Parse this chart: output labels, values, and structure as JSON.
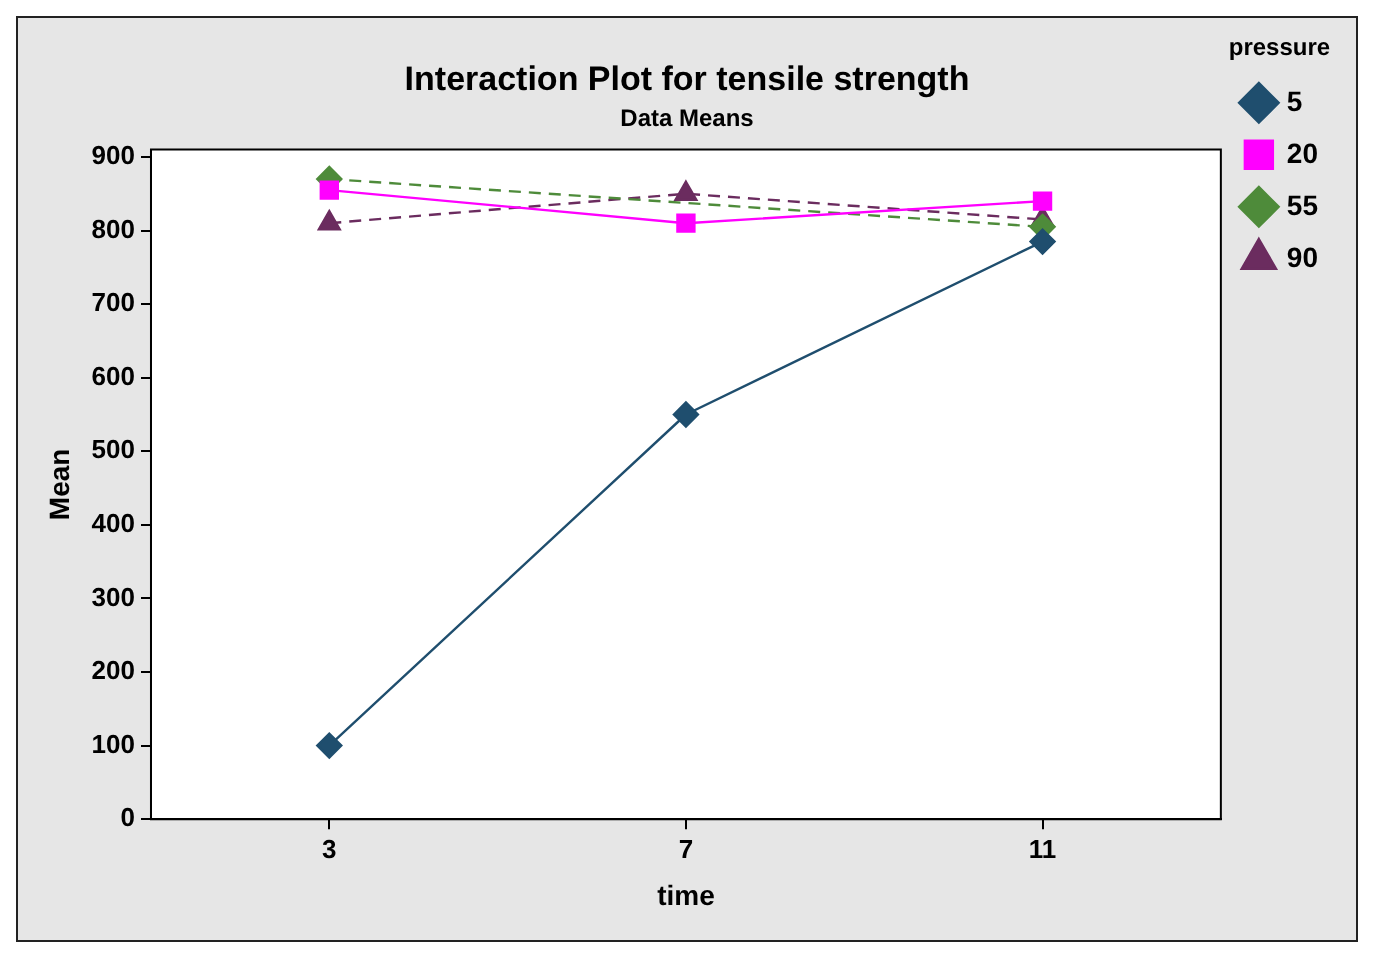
{
  "chart_data": {
    "type": "line",
    "title": "Interaction Plot for tensile strength",
    "subtitle": "Data Means",
    "xlabel": "time",
    "ylabel": "Mean",
    "legend_title": "pressure",
    "legend": "right",
    "grid": false,
    "x": [
      3,
      7,
      11
    ],
    "xlim": [
      1,
      13
    ],
    "xticks": [
      3,
      7,
      11
    ],
    "ylim": [
      0,
      910
    ],
    "yticks": [
      0,
      100,
      200,
      300,
      400,
      500,
      600,
      700,
      800,
      900
    ],
    "series": [
      {
        "name": "5",
        "color": "#1f4e6e",
        "values": [
          100,
          550,
          785
        ],
        "marker": "diamond",
        "line_style": "solid"
      },
      {
        "name": "20",
        "color": "#ff00ff",
        "values": [
          855,
          810,
          840
        ],
        "marker": "square",
        "line_style": "solid"
      },
      {
        "name": "55",
        "color": "#4e8b3a",
        "values": [
          870,
          null,
          805
        ],
        "marker": "diamond",
        "line_style": "dashed"
      },
      {
        "name": "90",
        "color": "#6b2c5f",
        "values": [
          810,
          850,
          815
        ],
        "marker": "triangle",
        "line_style": "dashed"
      }
    ]
  }
}
